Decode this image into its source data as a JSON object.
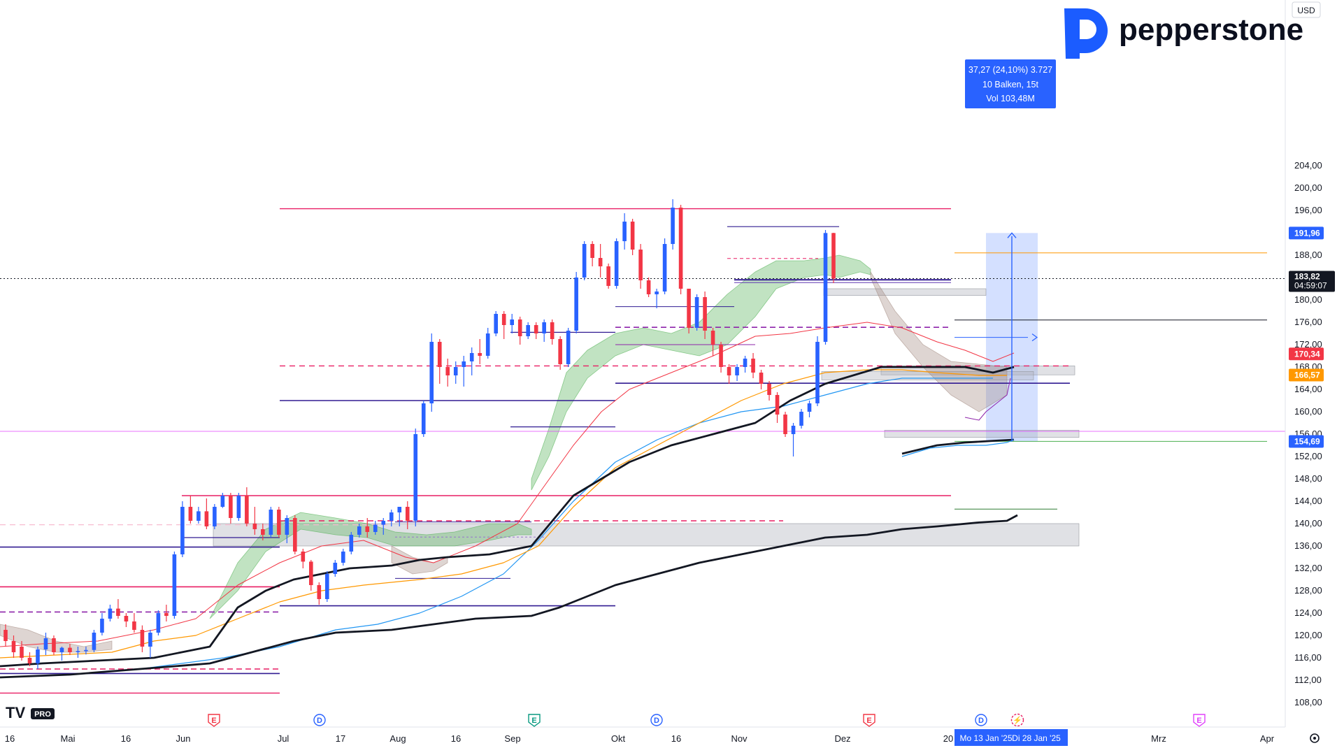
{
  "brand": {
    "name": "pepperstone",
    "color": "#1b5cff"
  },
  "watermark": {
    "text": "TV",
    "badge": "PRO"
  },
  "currency": "USD",
  "colors": {
    "up": "#2962ff",
    "down": "#f23645",
    "accent": "#2962ff"
  },
  "chart_data": {
    "type": "candlestick",
    "currency": "USD",
    "y_ticks": [
      "108,00",
      "112,00",
      "116,00",
      "120,00",
      "124,00",
      "128,00",
      "132,00",
      "136,00",
      "140,00",
      "144,00",
      "148,00",
      "152,00",
      "156,00",
      "160,00",
      "164,00",
      "168,00",
      "172,00",
      "176,00",
      "180,00",
      "184,00",
      "188,00",
      "192,00",
      "196,00",
      "200,00",
      "204,00"
    ],
    "x_ticks": [
      "16",
      "Mai",
      "16",
      "Jun",
      "Jul",
      "17",
      "Aug",
      "16",
      "Sep",
      "Okt",
      "16",
      "Nov",
      "Dez",
      "20",
      "Mrz",
      "Apr"
    ],
    "ylim": [
      106,
      208
    ],
    "price_tags": [
      {
        "label": "191,96",
        "value": 191.96,
        "bg": "#2962ff"
      },
      {
        "label": "183,82",
        "sub": "04:59:07",
        "value": 183.82,
        "bg": "#131722"
      },
      {
        "label": "170,34",
        "value": 170.34,
        "bg": "#f23645"
      },
      {
        "label": "166,57",
        "value": 166.57,
        "bg": "#ff9800"
      },
      {
        "label": "154,69",
        "value": 154.69,
        "bg": "#2962ff"
      }
    ],
    "measure": {
      "line1": "37,27 (24,10%) 3.727",
      "line2": "10 Balken, 15t",
      "line3": "Vol 103,48M",
      "from_price": 154.69,
      "to_price": 191.96
    },
    "date_range": {
      "start": "Mo 13 Jan '25",
      "end": "Di 28 Jan '25"
    },
    "events": [
      {
        "letter": "E",
        "color": "#f23645"
      },
      {
        "letter": "D",
        "color": "#2962ff"
      },
      {
        "letter": "E",
        "color": "#089981"
      },
      {
        "letter": "D",
        "color": "#2962ff"
      },
      {
        "letter": "E",
        "color": "#f23645"
      },
      {
        "letter": "D",
        "color": "#2962ff"
      },
      {
        "letter": "⚡",
        "color": "#e91e63"
      },
      {
        "letter": "E",
        "color": "#e040fb"
      }
    ],
    "candles": [
      [
        121,
        122,
        118,
        119
      ],
      [
        119,
        120,
        116,
        117
      ],
      [
        118,
        119,
        115.5,
        116
      ],
      [
        116,
        117,
        114.5,
        115
      ],
      [
        115,
        118,
        114,
        117.5
      ],
      [
        117.5,
        120.5,
        116.5,
        119.5
      ],
      [
        119.5,
        120,
        116.5,
        117
      ],
      [
        117,
        118,
        115.5,
        117.8
      ],
      [
        117.8,
        118.5,
        116.5,
        117
      ],
      [
        117,
        118,
        116,
        117.2
      ],
      [
        117.2,
        118,
        116.6,
        117.4
      ],
      [
        117.4,
        121,
        117,
        120.5
      ],
      [
        120.5,
        124,
        120,
        123
      ],
      [
        123,
        125.5,
        122.5,
        124.8
      ],
      [
        124.8,
        126.5,
        123,
        123.5
      ],
      [
        123.5,
        124,
        121.5,
        122.5
      ],
      [
        122.5,
        124,
        120.5,
        121
      ],
      [
        121,
        121.8,
        117,
        118
      ],
      [
        118,
        121,
        116,
        120.5
      ],
      [
        120.5,
        124.5,
        120,
        124
      ],
      [
        124,
        125.5,
        122.5,
        123.5
      ],
      [
        123.5,
        135,
        123,
        134.5
      ],
      [
        134.5,
        144,
        134,
        143
      ],
      [
        143,
        145,
        140,
        140.5
      ],
      [
        140.5,
        143,
        140,
        142.2
      ],
      [
        142.2,
        144.5,
        139,
        139.5
      ],
      [
        139.5,
        143.5,
        139,
        143
      ],
      [
        143,
        145.5,
        142.8,
        145
      ],
      [
        145,
        145.5,
        140,
        141
      ],
      [
        141,
        145.5,
        140.5,
        145
      ],
      [
        145,
        146.5,
        139.5,
        140
      ],
      [
        140,
        143,
        138,
        139
      ],
      [
        139,
        140,
        137,
        138
      ],
      [
        138,
        143,
        137.5,
        142.5
      ],
      [
        142.5,
        143,
        137.5,
        138
      ],
      [
        138,
        141.5,
        136.5,
        141
      ],
      [
        141,
        141.5,
        134.5,
        135
      ],
      [
        135,
        135.5,
        132,
        133.2
      ],
      [
        133.2,
        133.5,
        128,
        129
      ],
      [
        129,
        129.5,
        125.5,
        126.5
      ],
      [
        126.5,
        131.5,
        126,
        131
      ],
      [
        131,
        133.5,
        130.5,
        133
      ],
      [
        133,
        135.5,
        132.5,
        135
      ],
      [
        135,
        138.5,
        134.5,
        138
      ],
      [
        138,
        140,
        137.5,
        139.5
      ],
      [
        139.5,
        141,
        137.5,
        138.5
      ],
      [
        138.5,
        140.5,
        138,
        139.8
      ],
      [
        139.8,
        141,
        138,
        140.5
      ],
      [
        140.5,
        142.5,
        139.5,
        142
      ],
      [
        142,
        143,
        139.5,
        143
      ],
      [
        143,
        144,
        139,
        140.5
      ],
      [
        140.5,
        157,
        139.5,
        156
      ],
      [
        156,
        162,
        155.5,
        161.5
      ],
      [
        161.5,
        174,
        160,
        172.5
      ],
      [
        172.5,
        173,
        165,
        168
      ],
      [
        168,
        169.5,
        164.5,
        166.5
      ],
      [
        166.5,
        169,
        165,
        168
      ],
      [
        168,
        170,
        164.5,
        169
      ],
      [
        169,
        171.5,
        166.5,
        170.5
      ],
      [
        170.5,
        173,
        168.5,
        170
      ],
      [
        170,
        175,
        169.5,
        174
      ],
      [
        174,
        178,
        173.5,
        177.5
      ],
      [
        177.5,
        178,
        173,
        175.5
      ],
      [
        175.5,
        177.5,
        174,
        176.5
      ],
      [
        176.5,
        177,
        172,
        173.5
      ],
      [
        173.5,
        176,
        173,
        175.5
      ],
      [
        175.5,
        176,
        173,
        174
      ],
      [
        174,
        176.5,
        172.5,
        176
      ],
      [
        176,
        176.5,
        172,
        173
      ],
      [
        173,
        173.5,
        167.5,
        168.5
      ],
      [
        168.5,
        175,
        168,
        174.5
      ],
      [
        174.5,
        185,
        174,
        184
      ],
      [
        184,
        190.5,
        183.5,
        190
      ],
      [
        190,
        190.5,
        186,
        187.5
      ],
      [
        187.5,
        190,
        184,
        186
      ],
      [
        186,
        186.5,
        182,
        182.5
      ],
      [
        182.5,
        191,
        182,
        190.5
      ],
      [
        190.5,
        195.5,
        189,
        194
      ],
      [
        194,
        194.5,
        188,
        189
      ],
      [
        189,
        190,
        182,
        183.5
      ],
      [
        183.5,
        184,
        180.5,
        181
      ],
      [
        181,
        182,
        178.5,
        181.5
      ],
      [
        181.5,
        191,
        181,
        190
      ],
      [
        190,
        198,
        189,
        196.5
      ],
      [
        196.5,
        197,
        181,
        182
      ],
      [
        182,
        182,
        174,
        175
      ],
      [
        175,
        181,
        174.5,
        180.5
      ],
      [
        180.5,
        181.5,
        173,
        174.5
      ],
      [
        174.5,
        175,
        170,
        172
      ],
      [
        172,
        172.5,
        167,
        168
      ],
      [
        168,
        168.5,
        165,
        166.5
      ],
      [
        166.5,
        168.5,
        165.5,
        168
      ],
      [
        168,
        170,
        167,
        169.5
      ],
      [
        169.5,
        170.5,
        166,
        167
      ],
      [
        167,
        167.5,
        164,
        165
      ],
      [
        165,
        165.5,
        162,
        163
      ],
      [
        163,
        163.5,
        158,
        159.5
      ],
      [
        159.5,
        160,
        155.5,
        156
      ],
      [
        156,
        158,
        152,
        157.5
      ],
      [
        157.5,
        160.5,
        157,
        160
      ],
      [
        160,
        162,
        159,
        161.5
      ],
      [
        161.5,
        173.5,
        161,
        172.5
      ],
      [
        172.5,
        192.5,
        172,
        191.96
      ],
      [
        191.96,
        192,
        183,
        183.82
      ]
    ]
  }
}
